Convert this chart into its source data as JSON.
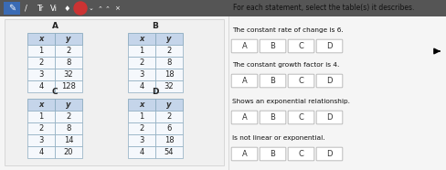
{
  "tables": {
    "A": {
      "label": "A",
      "x": [
        1,
        2,
        3,
        4
      ],
      "y": [
        2,
        8,
        32,
        128
      ]
    },
    "B": {
      "label": "B",
      "x": [
        1,
        2,
        3,
        4
      ],
      "y": [
        2,
        8,
        18,
        32
      ]
    },
    "C": {
      "label": "C",
      "x": [
        1,
        2,
        3,
        4
      ],
      "y": [
        2,
        8,
        14,
        20
      ]
    },
    "D": {
      "label": "D",
      "x": [
        1,
        2,
        3,
        4
      ],
      "y": [
        2,
        6,
        18,
        54
      ]
    }
  },
  "statements": [
    "The constant rate of change is 6.",
    "The constant growth factor is 4.",
    "Shows an exponential relationship.",
    "Is not linear or exponential."
  ],
  "button_labels": [
    "A",
    "B",
    "C",
    "D"
  ],
  "bg_color": "#e8e8e8",
  "content_bg": "#f0f0f0",
  "table_header_color": "#c5d5ea",
  "table_border_color": "#8baabf",
  "table_cell_color": "#f5f8fc",
  "button_color": "#ffffff",
  "button_border": "#bbbbbb",
  "toolbar_bg": "#555555",
  "toolbar_icon_bg": "#3a6bb5",
  "title_text": "For each statement, select the table(s) it describes.",
  "right_panel_bg": "#f0f0f0"
}
